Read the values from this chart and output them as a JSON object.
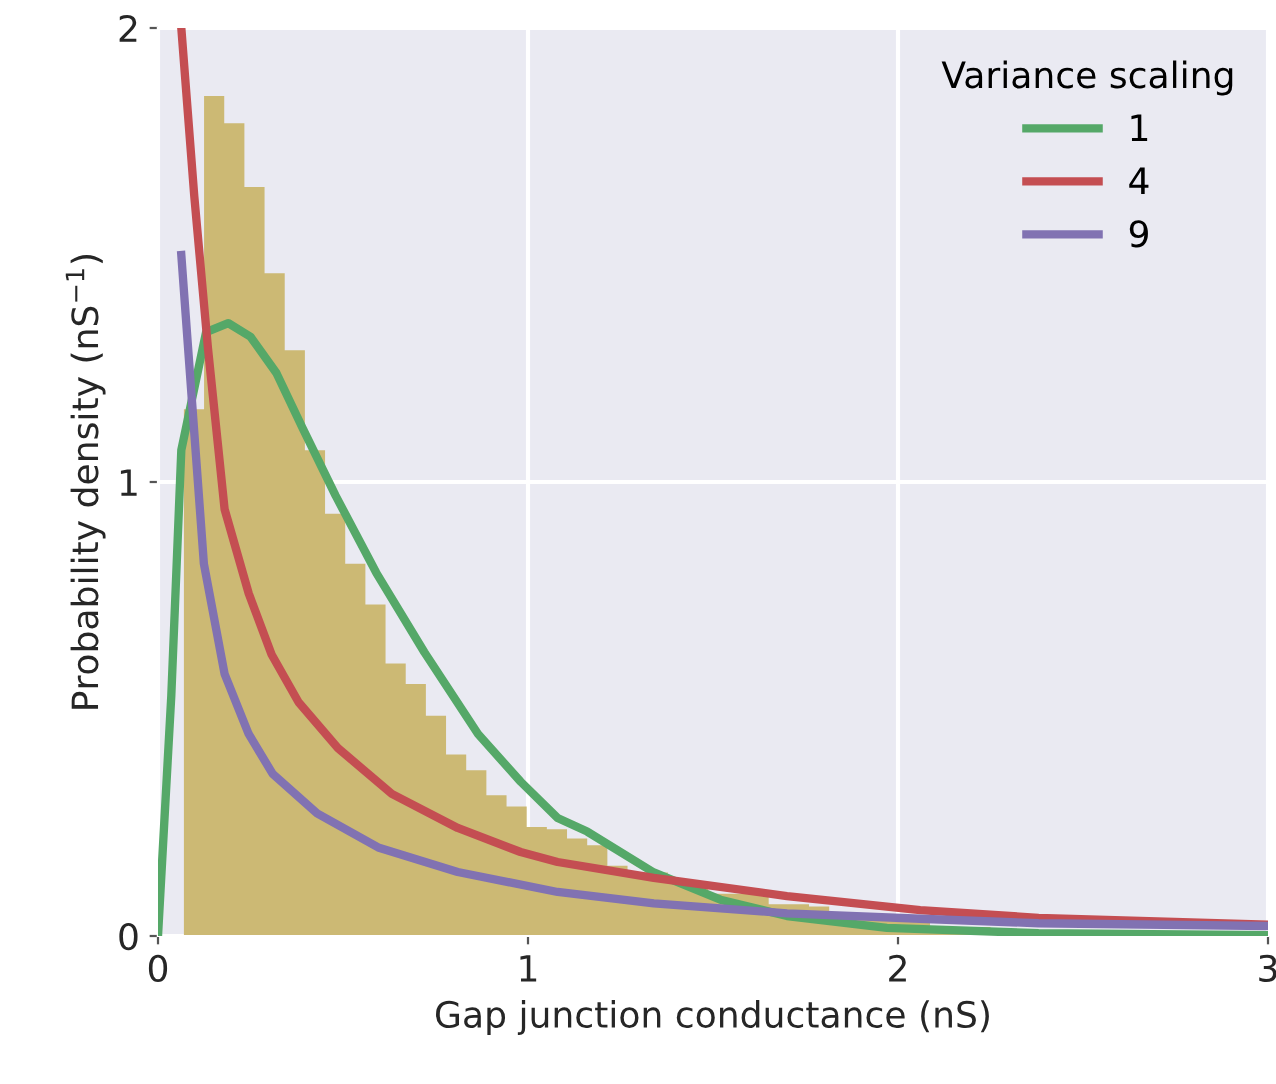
{
  "chart_data": {
    "type": "line",
    "xlabel": "Gap junction conductance (nS)",
    "ylabel": "Probability density (nS$^{−1}$)",
    "legend_title": "Variance scaling",
    "xlim": [
      0,
      3
    ],
    "xticks": [
      0,
      1,
      2,
      3
    ],
    "ylim": [
      0,
      2
    ],
    "yticks": [
      0,
      1,
      2
    ],
    "grid": true,
    "legend": "top right",
    "series": [
      {
        "type": "histogram",
        "color": "#ccb974",
        "bins": [
          0.07,
          0.1245,
          0.179,
          0.2335,
          0.288,
          0.3425,
          0.397,
          0.4515,
          0.506,
          0.5605,
          0.615,
          0.6695,
          0.724,
          0.7785,
          0.833,
          0.8875,
          0.942,
          0.9965,
          1.051,
          1.1055,
          1.16,
          1.2145,
          1.269,
          1.3235,
          1.378,
          1.4325,
          1.487,
          1.5415,
          1.596,
          1.6505,
          1.705,
          1.7595,
          1.814,
          1.8685,
          1.923,
          1.9775,
          2.032,
          2.0865,
          2.141,
          2.1955,
          2.25
        ],
        "values": [
          1.16,
          1.85,
          1.79,
          1.65,
          1.46,
          1.29,
          1.07,
          0.93,
          0.82,
          0.73,
          0.6,
          0.555,
          0.485,
          0.4,
          0.365,
          0.31,
          0.285,
          0.24,
          0.235,
          0.215,
          0.2,
          0.155,
          0.14,
          0.14,
          0.115,
          0.11,
          0.093,
          0.093,
          0.097,
          0.07,
          0.07,
          0.065,
          0.05,
          0.05,
          0.04,
          0.04,
          0.035,
          0.02,
          0.02,
          0.02
        ]
      },
      {
        "name": "1",
        "color": "#55a868",
        "x": [
          0,
          0.036,
          0.063,
          0.13,
          0.19,
          0.25,
          0.32,
          0.39,
          0.48,
          0.59,
          0.72,
          0.865,
          0.98,
          1.08,
          1.16,
          1.34,
          1.52,
          1.7,
          1.97,
          2.38,
          3
        ],
        "values": [
          0,
          0.53,
          1.07,
          1.33,
          1.35,
          1.32,
          1.24,
          1.12,
          0.97,
          0.8,
          0.625,
          0.445,
          0.34,
          0.26,
          0.23,
          0.14,
          0.08,
          0.044,
          0.018,
          0.006,
          0.002
        ]
      },
      {
        "name": "4",
        "color": "#c44e52",
        "x": [
          0.063,
          0.098,
          0.135,
          0.18,
          0.245,
          0.307,
          0.38,
          0.486,
          0.632,
          0.81,
          0.98,
          1.08,
          1.34,
          1.7,
          2.06,
          2.38,
          3
        ],
        "values": [
          2.0,
          1.63,
          1.295,
          0.94,
          0.755,
          0.62,
          0.515,
          0.414,
          0.313,
          0.238,
          0.185,
          0.163,
          0.128,
          0.088,
          0.057,
          0.04,
          0.025
        ]
      },
      {
        "name": "9",
        "color": "#8172b2",
        "x": [
          0.063,
          0.092,
          0.124,
          0.18,
          0.245,
          0.31,
          0.43,
          0.595,
          0.81,
          1.08,
          1.34,
          1.7,
          2.06,
          2.38,
          3
        ],
        "values": [
          1.5,
          1.176,
          0.82,
          0.577,
          0.445,
          0.357,
          0.27,
          0.195,
          0.141,
          0.097,
          0.072,
          0.05,
          0.038,
          0.028,
          0.022
        ]
      }
    ]
  }
}
